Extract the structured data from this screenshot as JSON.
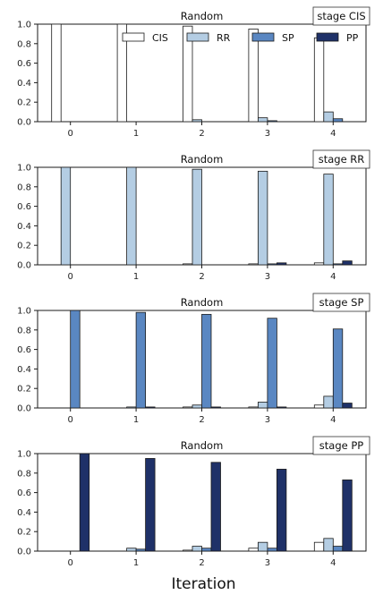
{
  "figure": {
    "xlabel": "Iteration"
  },
  "colors": {
    "CIS": "#ffffff",
    "RR": "#b4cde3",
    "SP": "#5a87c2",
    "PP": "#1f3168",
    "edge": "#1a1a1a"
  },
  "chart_data": [
    {
      "type": "bar",
      "title": "Random",
      "stage_label": "stage CIS",
      "categories": [
        "0",
        "1",
        "2",
        "3",
        "4"
      ],
      "yticks": [
        "0.0",
        "0.2",
        "0.4",
        "0.6",
        "0.8",
        "1.0"
      ],
      "ylim": [
        0,
        1
      ],
      "legend": {
        "placement": "top-right",
        "entries": [
          "CIS",
          "RR",
          "SP",
          "PP"
        ]
      },
      "series": [
        {
          "name": "CIS",
          "values": [
            1.0,
            1.0,
            0.98,
            0.95,
            0.86
          ]
        },
        {
          "name": "RR",
          "values": [
            0.0,
            0.0,
            0.02,
            0.04,
            0.1
          ]
        },
        {
          "name": "SP",
          "values": [
            0.0,
            0.0,
            0.0,
            0.01,
            0.03
          ]
        },
        {
          "name": "PP",
          "values": [
            0.0,
            0.0,
            0.0,
            0.0,
            0.0
          ]
        }
      ]
    },
    {
      "type": "bar",
      "title": "Random",
      "stage_label": "stage RR",
      "categories": [
        "0",
        "1",
        "2",
        "3",
        "4"
      ],
      "yticks": [
        "0.0",
        "0.2",
        "0.4",
        "0.6",
        "0.8",
        "1.0"
      ],
      "ylim": [
        0,
        1
      ],
      "series": [
        {
          "name": "CIS",
          "values": [
            0.0,
            0.0,
            0.01,
            0.01,
            0.02
          ]
        },
        {
          "name": "RR",
          "values": [
            1.0,
            1.0,
            0.98,
            0.96,
            0.93
          ]
        },
        {
          "name": "SP",
          "values": [
            0.0,
            0.0,
            0.0,
            0.01,
            0.01
          ]
        },
        {
          "name": "PP",
          "values": [
            0.0,
            0.0,
            0.0,
            0.02,
            0.04
          ]
        }
      ]
    },
    {
      "type": "bar",
      "title": "Random",
      "stage_label": "stage SP",
      "categories": [
        "0",
        "1",
        "2",
        "3",
        "4"
      ],
      "yticks": [
        "0.0",
        "0.2",
        "0.4",
        "0.6",
        "0.8",
        "1.0"
      ],
      "ylim": [
        0,
        1
      ],
      "series": [
        {
          "name": "CIS",
          "values": [
            0.0,
            0.0,
            0.01,
            0.01,
            0.03
          ]
        },
        {
          "name": "RR",
          "values": [
            0.0,
            0.01,
            0.03,
            0.06,
            0.12
          ]
        },
        {
          "name": "SP",
          "values": [
            1.0,
            0.98,
            0.96,
            0.92,
            0.81
          ]
        },
        {
          "name": "PP",
          "values": [
            0.0,
            0.01,
            0.01,
            0.01,
            0.05
          ]
        }
      ]
    },
    {
      "type": "bar",
      "title": "Random",
      "stage_label": "stage PP",
      "categories": [
        "0",
        "1",
        "2",
        "3",
        "4"
      ],
      "yticks": [
        "0.0",
        "0.2",
        "0.4",
        "0.6",
        "0.8",
        "1.0"
      ],
      "ylim": [
        0,
        1
      ],
      "series": [
        {
          "name": "CIS",
          "values": [
            0.0,
            0.0,
            0.01,
            0.03,
            0.09
          ]
        },
        {
          "name": "RR",
          "values": [
            0.0,
            0.03,
            0.05,
            0.09,
            0.13
          ]
        },
        {
          "name": "SP",
          "values": [
            0.0,
            0.02,
            0.03,
            0.03,
            0.05
          ]
        },
        {
          "name": "PP",
          "values": [
            1.0,
            0.95,
            0.91,
            0.84,
            0.73
          ]
        }
      ]
    }
  ]
}
